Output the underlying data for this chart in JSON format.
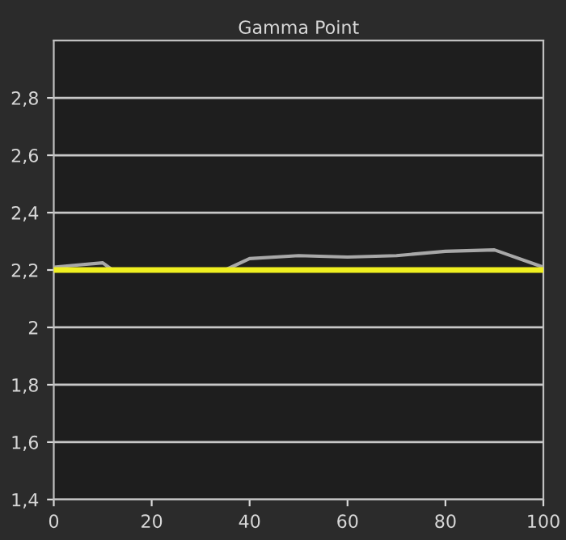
{
  "chart_data": {
    "type": "line",
    "title": "Gamma Point",
    "xlim": [
      0,
      100
    ],
    "ylim": [
      1.4,
      3.0
    ],
    "xticks": [
      0,
      20,
      40,
      60,
      80,
      100
    ],
    "yticks": [
      {
        "value": 1.4,
        "label": "1,4"
      },
      {
        "value": 1.6,
        "label": "1,6"
      },
      {
        "value": 1.8,
        "label": "1,8"
      },
      2,
      {
        "value": 2.2,
        "label": "2,2"
      },
      {
        "value": 2.4,
        "label": "2,4"
      },
      {
        "value": 2.6,
        "label": "2,6"
      },
      {
        "value": 2.8,
        "label": "2,8"
      }
    ],
    "grid": "y",
    "marker": "none",
    "line_style": "solid",
    "ref_lines": [
      {
        "axis": "y",
        "value": 2.2,
        "color": "#f0f020"
      }
    ],
    "series": [
      {
        "color": "#a8a8a8",
        "x": [
          0,
          10,
          12,
          35,
          40,
          50,
          60,
          70,
          80,
          90,
          100
        ],
        "values": [
          2.21,
          2.225,
          2.2,
          2.2,
          2.24,
          2.25,
          2.245,
          2.25,
          2.265,
          2.27,
          2.21
        ]
      }
    ]
  }
}
